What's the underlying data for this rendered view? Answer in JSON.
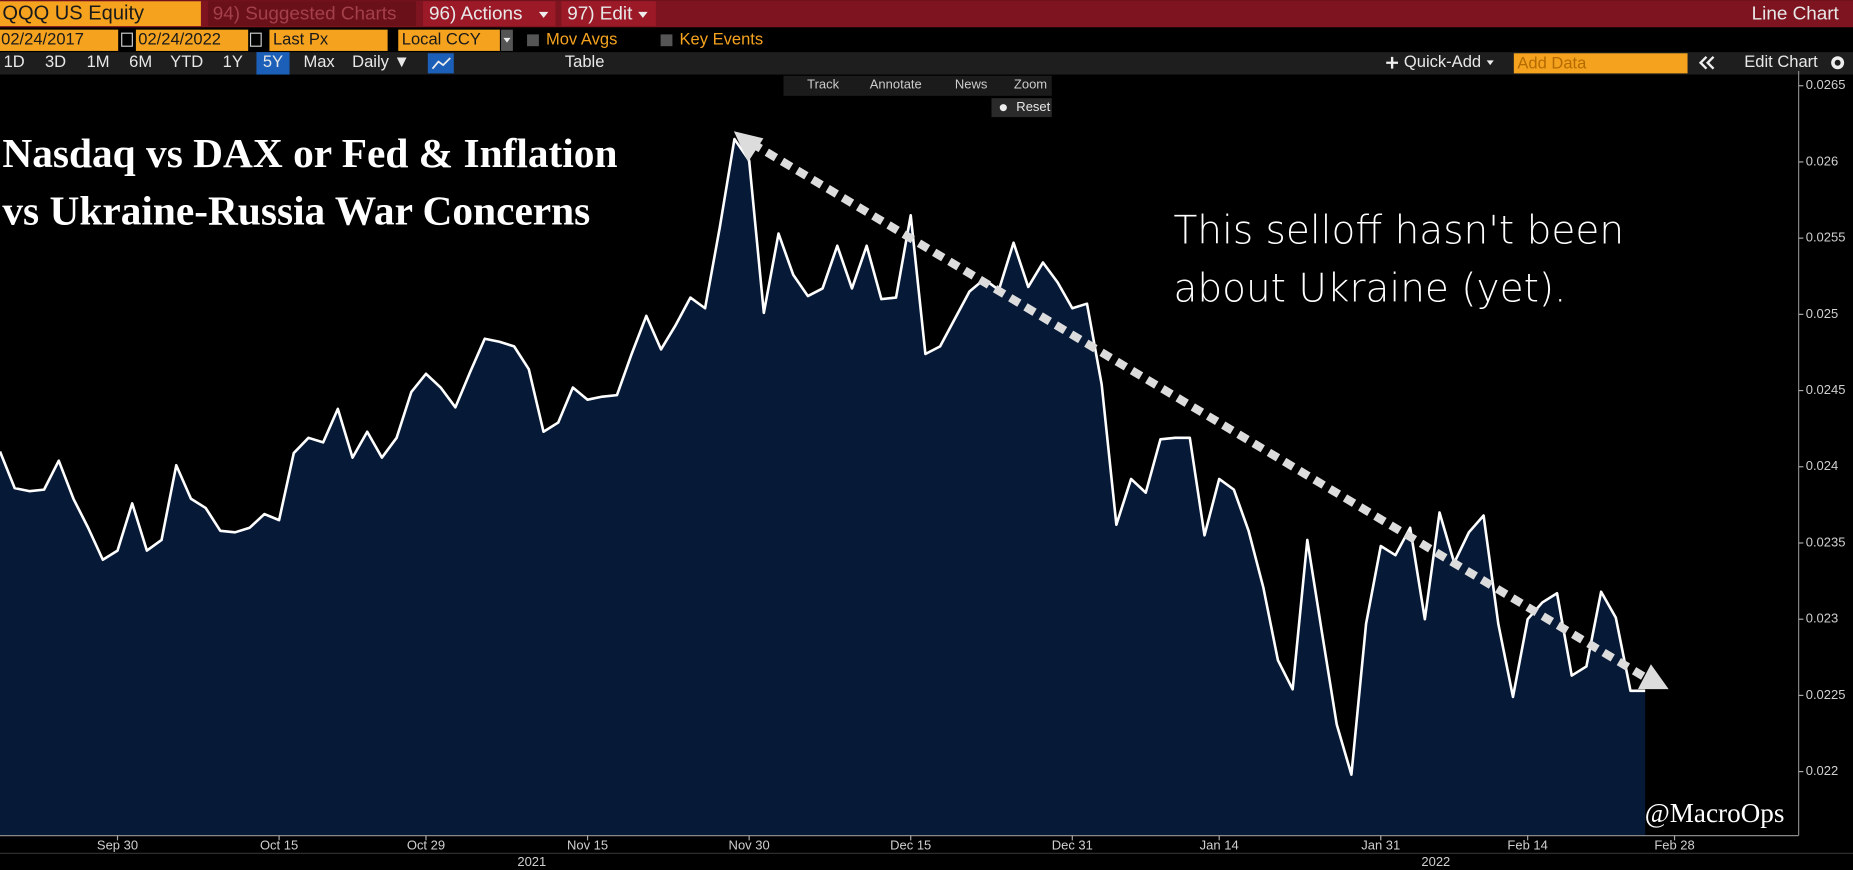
{
  "toolbar": {
    "security": "QQQ US Equity",
    "menus": [
      "94) Suggested Charts",
      "96) Actions",
      "97) Edit"
    ],
    "view": "Line Chart",
    "start_date": "02/24/2017",
    "date_separator": "-",
    "end_date": "02/24/2022",
    "field": "Last Px",
    "currency": "Local CCY",
    "options": [
      "Mov Avgs",
      "Key Events"
    ],
    "periods": [
      "1D",
      "3D",
      "1M",
      "6M",
      "YTD",
      "1Y",
      "5Y",
      "Max"
    ],
    "frequency": "Daily ▼",
    "table": "Table",
    "quick_add": "Quick-Add",
    "add_data": "Add Data",
    "edit_chart": "Edit Chart",
    "tools": [
      "Track",
      "Annotate",
      "News",
      "Zoom"
    ],
    "reset": "Reset"
  },
  "chart_data": {
    "type": "line",
    "title": [
      "Nasdaq vs DAX or Fed & Inflation",
      "vs Ukraine-Russia War Concerns"
    ],
    "annotation": [
      "This selloff hasn't been",
      "about Ukraine (yet)."
    ],
    "watermark": "@MacroOps",
    "years": [
      "2021",
      "2022"
    ],
    "categories": [
      null,
      null,
      null,
      null,
      null,
      null,
      null,
      null,
      "Sep 30",
      null,
      null,
      null,
      null,
      null,
      null,
      null,
      null,
      null,
      null,
      "Oct 15",
      null,
      null,
      null,
      null,
      null,
      null,
      null,
      null,
      null,
      "Oct 29",
      null,
      null,
      null,
      null,
      null,
      null,
      null,
      null,
      null,
      null,
      "Nov 15",
      null,
      null,
      null,
      null,
      null,
      null,
      null,
      null,
      null,
      null,
      "Nov 30",
      null,
      null,
      null,
      null,
      null,
      null,
      null,
      null,
      null,
      null,
      "Dec 15",
      null,
      null,
      null,
      null,
      null,
      null,
      null,
      null,
      null,
      null,
      "Dec 31",
      null,
      null,
      null,
      null,
      null,
      null,
      null,
      null,
      null,
      "Jan 14",
      null,
      null,
      null,
      null,
      null,
      null,
      null,
      null,
      null,
      null,
      "Jan 31",
      null,
      null,
      null,
      null,
      null,
      null,
      null,
      null,
      null,
      "Feb 14",
      null,
      null,
      null,
      null,
      null,
      null,
      null,
      null,
      null,
      "Feb 28"
    ],
    "series": [
      {
        "name": "QQQ US Equity",
        "color": "#ffffff",
        "fill": "#061a38",
        "values": [
          0.0241,
          0.02386,
          0.02384,
          0.02385,
          0.02404,
          0.02379,
          0.0236,
          0.02339,
          0.02345,
          0.02376,
          0.02345,
          0.02352,
          0.02401,
          0.02379,
          0.02373,
          0.02358,
          0.02357,
          0.0236,
          0.02369,
          0.02365,
          0.02409,
          0.02419,
          0.02416,
          0.02438,
          0.02406,
          0.02423,
          0.02406,
          0.02419,
          0.02449,
          0.02461,
          0.02452,
          0.02439,
          0.02462,
          0.02484,
          0.02482,
          0.02479,
          0.02464,
          0.02423,
          0.02429,
          0.02452,
          0.02444,
          0.02446,
          0.02447,
          0.02474,
          0.02499,
          0.02477,
          0.02493,
          0.02511,
          0.02504,
          0.02557,
          0.02615,
          0.02601,
          0.02501,
          0.02553,
          0.02526,
          0.02512,
          0.02517,
          0.02545,
          0.02517,
          0.02545,
          0.0251,
          0.02511,
          0.02565,
          0.02474,
          0.02479,
          0.02497,
          0.02515,
          0.02523,
          0.02516,
          0.02547,
          0.02518,
          0.02534,
          0.02521,
          0.02504,
          0.02507,
          0.02454,
          0.02362,
          0.02392,
          0.02383,
          0.02418,
          0.02419,
          0.02419,
          0.02355,
          0.02392,
          0.02385,
          0.02358,
          0.02321,
          0.02273,
          0.02254,
          0.02352,
          0.02291,
          0.02231,
          0.02198,
          0.02297,
          0.02348,
          0.02342,
          0.0236,
          0.023,
          0.0237,
          0.02337,
          0.02357,
          0.02368,
          0.02297,
          0.02249,
          0.023,
          0.02311,
          0.02317,
          0.02263,
          0.02269,
          0.02318,
          0.02301,
          0.02253,
          0.02253,
          null,
          null
        ]
      }
    ],
    "ylim": [
      0.02158,
      0.02655
    ],
    "yticks": [
      0.022,
      0.0225,
      0.023,
      0.0235,
      0.024,
      0.0245,
      0.025,
      0.0255,
      0.026,
      0.0265
    ]
  }
}
